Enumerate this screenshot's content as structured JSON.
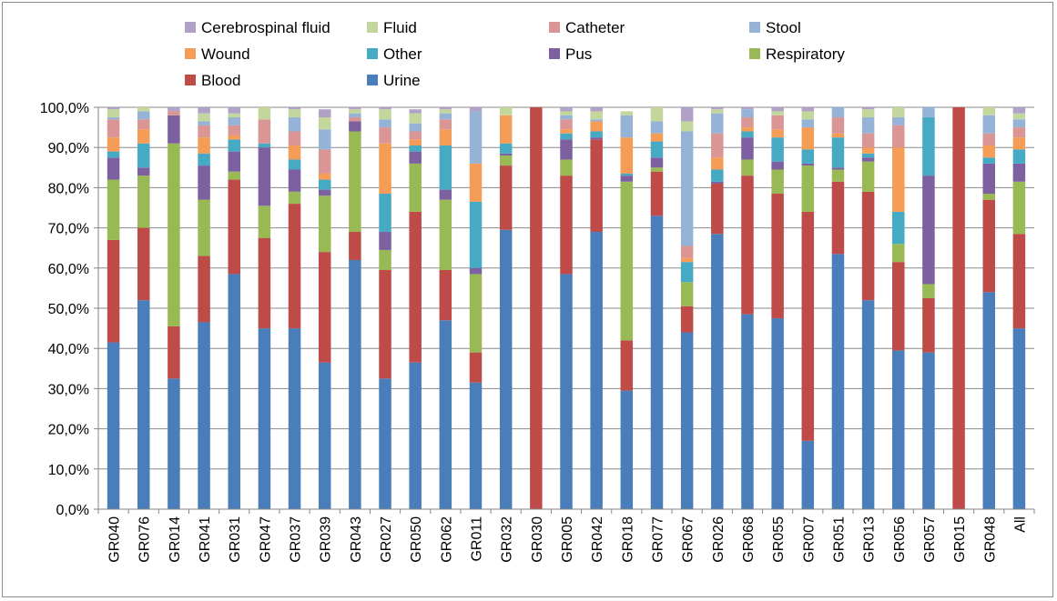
{
  "chart_data": {
    "type": "bar",
    "stacked": true,
    "percent_stacked": true,
    "ylim": [
      0,
      100
    ],
    "y_ticks": [
      "0,0%",
      "10,0%",
      "20,0%",
      "30,0%",
      "40,0%",
      "50,0%",
      "60,0%",
      "70,0%",
      "80,0%",
      "90,0%",
      "100,0%"
    ],
    "grid": true,
    "legend_position": "top",
    "categories": [
      "GR040",
      "GR076",
      "GR014",
      "GR041",
      "GR031",
      "GR047",
      "GR037",
      "GR039",
      "GR043",
      "GR027",
      "GR050",
      "GR062",
      "GR011",
      "GR032",
      "GR030",
      "GR005",
      "GR042",
      "GR018",
      "GR077",
      "GR067",
      "GR026",
      "GR068",
      "GR055",
      "GR007",
      "GR051",
      "GR013",
      "GR056",
      "GR057",
      "GR015",
      "GR048",
      "All"
    ],
    "series": [
      {
        "name": "Urine",
        "color": "#4a7ebb",
        "values": [
          41.5,
          52,
          32.5,
          46.5,
          58.5,
          45,
          45,
          36.5,
          62,
          32.5,
          36.5,
          47,
          31.5,
          69.5,
          0,
          58.5,
          69,
          29.5,
          73,
          44,
          68.5,
          48.5,
          47.5,
          17,
          63.5,
          52,
          39.5,
          39,
          0,
          54,
          45
        ]
      },
      {
        "name": "Blood",
        "color": "#be4b48",
        "values": [
          25.5,
          18,
          13,
          16.5,
          23.5,
          22.5,
          31,
          27.5,
          7,
          27,
          37.5,
          12.5,
          7.5,
          16,
          100,
          24.5,
          23,
          12.5,
          11,
          6.5,
          12.5,
          34.5,
          31,
          57,
          18,
          27,
          22,
          13.5,
          100,
          23,
          23.5
        ]
      },
      {
        "name": "Respiratory",
        "color": "#98b954",
        "values": [
          15,
          13,
          45.5,
          14,
          2,
          8,
          3,
          14,
          25,
          5,
          12,
          17.5,
          19.5,
          2.5,
          0,
          4,
          0,
          39.5,
          1,
          6,
          0,
          4,
          6,
          11.5,
          3,
          7.5,
          4.5,
          3.5,
          0,
          1.5,
          13
        ]
      },
      {
        "name": "Pus",
        "color": "#7d60a0",
        "values": [
          5.5,
          2,
          7,
          8.5,
          5,
          14.5,
          5.5,
          1.5,
          2.5,
          4.5,
          3,
          2.5,
          1.5,
          0.5,
          0,
          5,
          0.5,
          1.5,
          2.5,
          0,
          0.5,
          5.5,
          2,
          0.5,
          0.5,
          1,
          0,
          27,
          0,
          7.5,
          4.5
        ]
      },
      {
        "name": "Other",
        "color": "#46aac4",
        "values": [
          1.5,
          6,
          0,
          3,
          3,
          1,
          2.5,
          2.5,
          0,
          9.5,
          1.5,
          11,
          16.5,
          2.5,
          0,
          1.5,
          1.5,
          0.5,
          4,
          5,
          3,
          1.5,
          6,
          3.5,
          7.5,
          1,
          8,
          14.5,
          0,
          1.5,
          3.5
        ]
      },
      {
        "name": "Wound",
        "color": "#f59d56",
        "values": [
          3.5,
          3.5,
          0,
          4,
          1,
          0,
          3.5,
          1.5,
          0,
          12.5,
          1.5,
          4,
          9.5,
          7,
          0,
          1,
          2.5,
          9,
          2,
          1,
          3,
          1,
          2,
          5.5,
          1,
          1.5,
          16,
          0,
          0,
          3,
          3
        ]
      },
      {
        "name": "Catheter",
        "color": "#d99694",
        "values": [
          4.5,
          2.5,
          1,
          3,
          2.5,
          6,
          3.5,
          6,
          1,
          4,
          2,
          2.5,
          0,
          0,
          0,
          2.5,
          0,
          0,
          0,
          3,
          6,
          2.5,
          3.5,
          0,
          4,
          3.5,
          5.5,
          0,
          0,
          3,
          2.5
        ]
      },
      {
        "name": "Stool",
        "color": "#95b3d7",
        "values": [
          0.5,
          2,
          0,
          1,
          2,
          0,
          3.5,
          5,
          1,
          2,
          2,
          1.5,
          13,
          0,
          0,
          1,
          0.5,
          5.5,
          3,
          28.5,
          5,
          2,
          0,
          2,
          3,
          4,
          2,
          3,
          0,
          4.5,
          2
        ]
      },
      {
        "name": "Fluid",
        "color": "#c3d69b",
        "values": [
          2,
          1,
          0,
          2,
          1,
          3.5,
          2,
          3,
          1,
          2.5,
          2.5,
          1,
          0,
          2,
          0,
          1,
          2,
          1,
          3.5,
          2.5,
          1,
          0,
          1,
          2,
          0.5,
          2,
          3,
          0,
          0,
          2,
          1.5
        ]
      },
      {
        "name": "Cerebrospinal fluid",
        "color": "#b2a1c7",
        "values": [
          0.5,
          0,
          1,
          1.5,
          1.5,
          0,
          0.5,
          2,
          0.5,
          0.5,
          1,
          0.5,
          1,
          0,
          0,
          1,
          1,
          0,
          0,
          3.5,
          0.5,
          0.5,
          1,
          1,
          0,
          0.5,
          0,
          0,
          0,
          0,
          1.5
        ]
      }
    ],
    "legend_rows": [
      [
        "Cerebrospinal fluid",
        "Fluid",
        "Catheter",
        "Stool"
      ],
      [
        "Wound",
        "Other",
        "Pus",
        "Respiratory"
      ],
      [
        "Blood",
        "Urine"
      ]
    ]
  }
}
